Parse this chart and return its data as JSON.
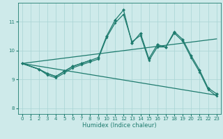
{
  "xlabel": "Humidex (Indice chaleur)",
  "bg_color": "#ceeaea",
  "line_color": "#1e7b6e",
  "grid_color": "#a8d4d4",
  "xlim": [
    -0.5,
    23.5
  ],
  "ylim": [
    7.8,
    11.65
  ],
  "xticks": [
    0,
    1,
    2,
    3,
    4,
    5,
    6,
    7,
    8,
    9,
    10,
    11,
    12,
    13,
    14,
    15,
    16,
    17,
    18,
    19,
    20,
    21,
    22,
    23
  ],
  "yticks": [
    8,
    9,
    10,
    11
  ],
  "line_upper_trend": {
    "x": [
      0,
      23
    ],
    "y": [
      9.55,
      10.4
    ]
  },
  "line_lower_trend": {
    "x": [
      0,
      23
    ],
    "y": [
      9.55,
      8.45
    ]
  },
  "line_main_marked": {
    "x": [
      0,
      2,
      3,
      4,
      5,
      6,
      7,
      8,
      9,
      10,
      11,
      12,
      13,
      14,
      15,
      16,
      17,
      18,
      19,
      20,
      21,
      22,
      23
    ],
    "y": [
      9.55,
      9.35,
      9.2,
      9.1,
      9.28,
      9.45,
      9.55,
      9.65,
      9.75,
      10.5,
      11.05,
      11.4,
      10.25,
      10.6,
      9.72,
      10.2,
      10.12,
      10.65,
      10.38,
      9.82,
      9.32,
      8.7,
      8.5
    ]
  },
  "line_second_marked": {
    "x": [
      0,
      2,
      3,
      4,
      5,
      6,
      7,
      8,
      9,
      10,
      11,
      12,
      13,
      14,
      15,
      16,
      17,
      18,
      19,
      20,
      21,
      22,
      23
    ],
    "y": [
      9.55,
      9.35,
      9.15,
      9.05,
      9.22,
      9.4,
      9.5,
      9.6,
      9.7,
      10.45,
      10.95,
      11.25,
      10.3,
      10.52,
      9.65,
      10.12,
      10.12,
      10.6,
      10.32,
      9.75,
      9.25,
      8.65,
      8.42
    ]
  },
  "line_short_marked": {
    "x": [
      0,
      2,
      3,
      4,
      5,
      6,
      7,
      8
    ],
    "y": [
      9.55,
      9.35,
      9.2,
      9.1,
      9.28,
      9.45,
      9.55,
      9.65
    ]
  }
}
